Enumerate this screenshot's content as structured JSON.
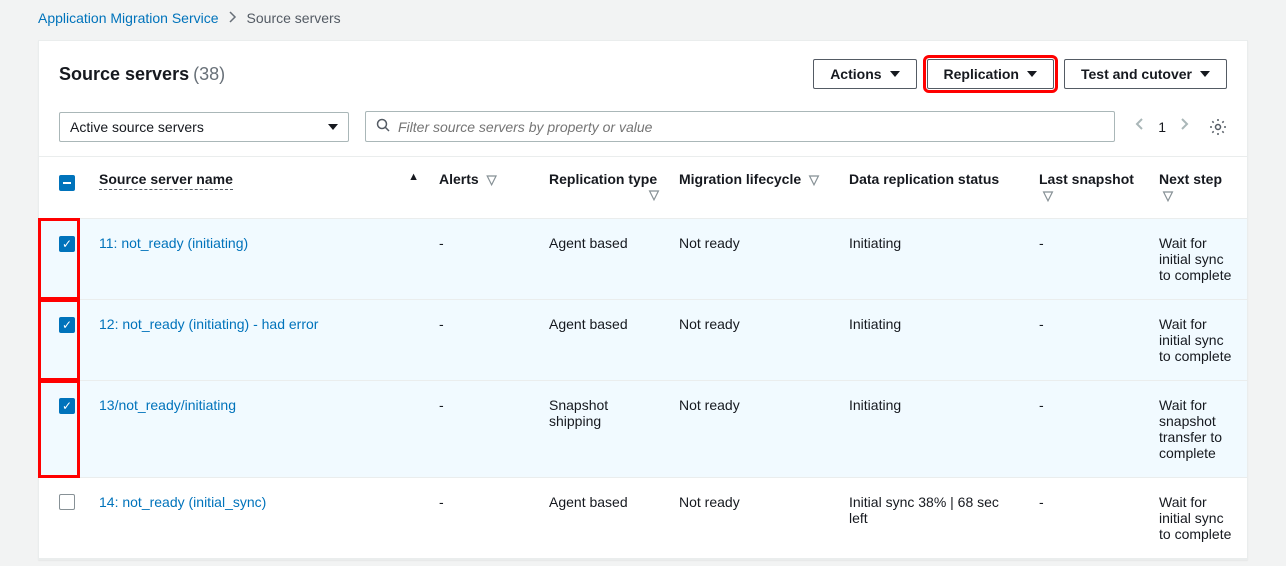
{
  "breadcrumbs": {
    "parent": "Application Migration Service",
    "current": "Source servers"
  },
  "header": {
    "title": "Source servers",
    "count": "(38)",
    "buttons": {
      "actions": "Actions",
      "replication": "Replication",
      "test_cutover": "Test and cutover"
    }
  },
  "filter": {
    "dropdown_label": "Active source servers",
    "search_placeholder": "Filter source servers by property or value",
    "page": "1"
  },
  "columns": {
    "name": "Source server name",
    "alerts": "Alerts",
    "rtype": "Replication type",
    "lifecycle": "Migration lifecycle",
    "status": "Data replication status",
    "snapshot": "Last snapshot",
    "next": "Next step"
  },
  "rows": [
    {
      "checked": true,
      "hl": true,
      "name": "11: not_ready (initiating)",
      "alerts": "-",
      "rtype": "Agent based",
      "lifecycle": "Not ready",
      "status": "Initiating",
      "snapshot": "-",
      "next": "Wait for initial sync to complete"
    },
    {
      "checked": true,
      "hl": true,
      "name": "12: not_ready (initiating) - had error",
      "alerts": "-",
      "rtype": "Agent based",
      "lifecycle": "Not ready",
      "status": "Initiating",
      "snapshot": "-",
      "next": "Wait for initial sync to complete"
    },
    {
      "checked": true,
      "hl": true,
      "name": "13/not_ready/initiating",
      "alerts": "-",
      "rtype": "Snapshot shipping",
      "lifecycle": "Not ready",
      "status": "Initiating",
      "snapshot": "-",
      "next": "Wait for snapshot transfer to complete"
    },
    {
      "checked": false,
      "hl": false,
      "name": "14: not_ready (initial_sync)",
      "alerts": "-",
      "rtype": "Agent based",
      "lifecycle": "Not ready",
      "status": "Initial sync 38% | 68 sec left",
      "snapshot": "-",
      "next": "Wait for initial sync to complete"
    }
  ]
}
